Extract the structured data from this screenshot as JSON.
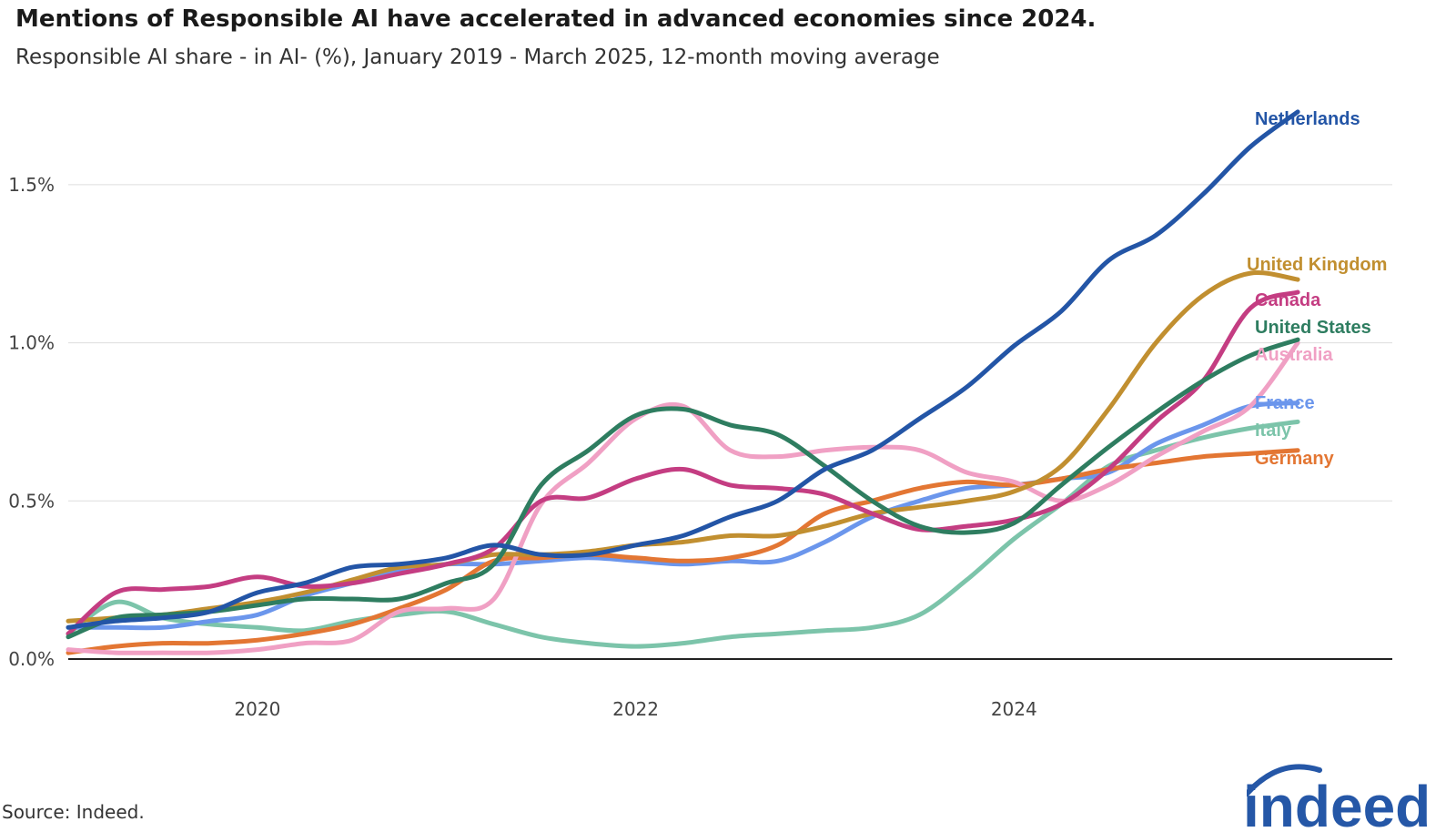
{
  "title": "Mentions of Responsible AI have accelerated in advanced economies since 2024.",
  "subtitle": "Responsible AI share - in AI- (%), January 2019 - March 2025, 12-month moving average",
  "source": "Source: Indeed.",
  "logo_text": "indeed",
  "chart_data": {
    "type": "line",
    "title": "Mentions of Responsible AI have accelerated in advanced economies since 2024.",
    "xlabel": "",
    "ylabel": "",
    "x_start": 2019.0,
    "x_step": 0.25,
    "xlim": [
      2019.0,
      2026.0
    ],
    "ylim": [
      0,
      1.75
    ],
    "yticks": [
      0,
      0.5,
      1.0,
      1.5
    ],
    "ytick_labels": [
      "0.0%",
      "0.5%",
      "1.0%",
      "1.5%"
    ],
    "xticks": [
      2020,
      2022,
      2024
    ],
    "xtick_labels": [
      "2020",
      "2022",
      "2024"
    ],
    "grid": true,
    "legend": "direct labels at right end of lines",
    "series": [
      {
        "name": "Netherlands",
        "color": "#2355a6",
        "values": [
          0.1,
          0.12,
          0.13,
          0.15,
          0.21,
          0.24,
          0.29,
          0.3,
          0.32,
          0.36,
          0.33,
          0.33,
          0.36,
          0.39,
          0.45,
          0.5,
          0.6,
          0.66,
          0.76,
          0.86,
          0.99,
          1.1,
          1.26,
          1.34,
          1.47,
          1.62,
          1.73
        ]
      },
      {
        "name": "United Kingdom",
        "color": "#c18f30",
        "values": [
          0.12,
          0.13,
          0.14,
          0.16,
          0.18,
          0.21,
          0.25,
          0.29,
          0.3,
          0.33,
          0.33,
          0.34,
          0.36,
          0.37,
          0.39,
          0.39,
          0.42,
          0.46,
          0.48,
          0.5,
          0.53,
          0.61,
          0.79,
          1.0,
          1.15,
          1.22,
          1.2
        ]
      },
      {
        "name": "Canada",
        "color": "#c43d82",
        "values": [
          0.08,
          0.21,
          0.22,
          0.23,
          0.26,
          0.23,
          0.24,
          0.27,
          0.3,
          0.35,
          0.5,
          0.51,
          0.57,
          0.6,
          0.55,
          0.54,
          0.52,
          0.46,
          0.41,
          0.42,
          0.44,
          0.49,
          0.6,
          0.75,
          0.88,
          1.11,
          1.16
        ]
      },
      {
        "name": "United States",
        "color": "#2e7d60",
        "values": [
          0.07,
          0.13,
          0.14,
          0.15,
          0.17,
          0.19,
          0.19,
          0.19,
          0.24,
          0.3,
          0.55,
          0.66,
          0.77,
          0.79,
          0.74,
          0.71,
          0.61,
          0.5,
          0.42,
          0.4,
          0.43,
          0.55,
          0.67,
          0.78,
          0.88,
          0.96,
          1.01
        ]
      },
      {
        "name": "Australia",
        "color": "#f0a0c4",
        "values": [
          0.03,
          0.02,
          0.02,
          0.02,
          0.03,
          0.05,
          0.06,
          0.15,
          0.16,
          0.19,
          0.49,
          0.62,
          0.76,
          0.8,
          0.66,
          0.64,
          0.66,
          0.67,
          0.66,
          0.59,
          0.56,
          0.5,
          0.55,
          0.64,
          0.72,
          0.8,
          1.0
        ]
      },
      {
        "name": "France",
        "color": "#6b96ec",
        "values": [
          0.1,
          0.1,
          0.1,
          0.12,
          0.14,
          0.2,
          0.24,
          0.28,
          0.3,
          0.3,
          0.31,
          0.32,
          0.31,
          0.3,
          0.31,
          0.31,
          0.37,
          0.45,
          0.5,
          0.54,
          0.55,
          0.57,
          0.59,
          0.68,
          0.74,
          0.8,
          0.81
        ]
      },
      {
        "name": "Italy",
        "color": "#7cc4aa",
        "values": [
          0.08,
          0.18,
          0.13,
          0.11,
          0.1,
          0.09,
          0.12,
          0.14,
          0.15,
          0.11,
          0.07,
          0.05,
          0.04,
          0.05,
          0.07,
          0.08,
          0.09,
          0.1,
          0.14,
          0.25,
          0.38,
          0.49,
          0.61,
          0.66,
          0.7,
          0.73,
          0.75
        ]
      },
      {
        "name": "Germany",
        "color": "#e37633",
        "values": [
          0.02,
          0.04,
          0.05,
          0.05,
          0.06,
          0.08,
          0.11,
          0.16,
          0.22,
          0.31,
          0.32,
          0.33,
          0.32,
          0.31,
          0.32,
          0.36,
          0.46,
          0.5,
          0.54,
          0.56,
          0.55,
          0.57,
          0.6,
          0.62,
          0.64,
          0.65,
          0.66
        ]
      }
    ]
  },
  "colors": {
    "grid": "#dddddd",
    "axis": "#222222",
    "logo": "#2557a7"
  }
}
